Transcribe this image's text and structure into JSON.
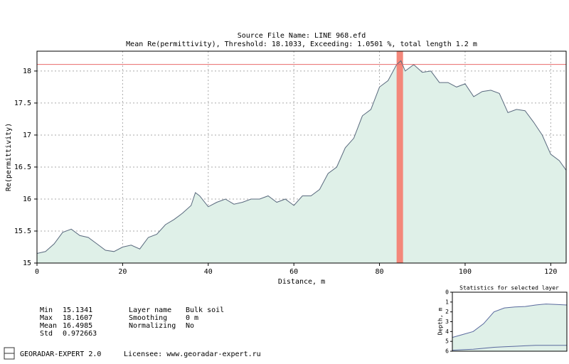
{
  "chart_data": [
    {
      "type": "area",
      "title": "Source File Name: LINE 968.efd",
      "subtitle": "Mean Re(permittivity), Threshold: 18.1033, Exceeding: 1.0501 %, total length 1.2 m",
      "x_label": "Distance, m",
      "y_label": "Re(permittivity)",
      "x": [
        0,
        2,
        4,
        6,
        8,
        10,
        12,
        14,
        16,
        18,
        20,
        22,
        24,
        26,
        28,
        30,
        32,
        34,
        36,
        37,
        38,
        40,
        42,
        44,
        46,
        48,
        50,
        52,
        54,
        56,
        58,
        60,
        62,
        64,
        66,
        68,
        70,
        72,
        74,
        76,
        78,
        80,
        82,
        84,
        85,
        86,
        88,
        90,
        92,
        94,
        96,
        98,
        100,
        102,
        104,
        106,
        108,
        110,
        112,
        114,
        116,
        118,
        120,
        122,
        123.6
      ],
      "values": [
        15.15,
        15.18,
        15.3,
        15.48,
        15.53,
        15.43,
        15.4,
        15.3,
        15.2,
        15.18,
        15.25,
        15.28,
        15.22,
        15.4,
        15.45,
        15.6,
        15.68,
        15.78,
        15.9,
        16.1,
        16.05,
        15.88,
        15.95,
        16.0,
        15.92,
        15.95,
        16.0,
        16.0,
        16.05,
        15.95,
        16.0,
        15.9,
        16.05,
        16.05,
        16.15,
        16.4,
        16.5,
        16.8,
        16.95,
        17.3,
        17.4,
        17.75,
        17.85,
        18.1,
        18.16,
        18.0,
        18.1,
        17.98,
        18.0,
        17.82,
        17.82,
        17.75,
        17.8,
        17.6,
        17.68,
        17.7,
        17.65,
        17.35,
        17.4,
        17.38,
        17.2,
        17.0,
        16.7,
        16.6,
        16.45
      ],
      "color": "#5a6a7e",
      "fill": "#dff0e8",
      "threshold": 18.1033,
      "threshold_color": "#e86a6a",
      "highlight_x": [
        84,
        85.5
      ],
      "highlight_color": "#f4877a",
      "xlim": [
        0,
        123.6
      ],
      "ylim": [
        15,
        18.31
      ],
      "xticks": [
        0,
        20,
        40,
        60,
        80,
        100,
        120
      ],
      "yticks": [
        15,
        15.5,
        16,
        16.5,
        17,
        17.5,
        18
      ],
      "grid": true
    },
    {
      "type": "line",
      "title": "Statistics for selected layer",
      "y_label": "Depth, m",
      "ylim": [
        0,
        6
      ],
      "yticks": [
        0,
        1,
        2,
        3,
        4,
        5,
        6
      ],
      "y_inverted": true,
      "fill": "#dff0e8",
      "series": [
        {
          "color": "#5a6a9e",
          "values": [
            4.6,
            4.3,
            4.0,
            3.2,
            2.0,
            1.6,
            1.5,
            1.45,
            1.3,
            1.2,
            1.25,
            1.3
          ]
        },
        {
          "color": "#5a6a9e",
          "values": [
            5.9,
            5.85,
            5.8,
            5.7,
            5.6,
            5.55,
            5.5,
            5.45,
            5.4,
            5.4,
            5.4,
            5.4
          ]
        }
      ]
    }
  ],
  "stats": [
    [
      "Min",
      "15.1341"
    ],
    [
      "Max",
      "18.1607"
    ],
    [
      "Mean",
      "16.4985"
    ],
    [
      "Std",
      "0.972663"
    ]
  ],
  "layer": [
    [
      "Layer name",
      "Bulk soil"
    ],
    [
      "Smoothing",
      "0 m"
    ],
    [
      "Normalizing",
      "No"
    ]
  ],
  "footer": {
    "app": "GEORADAR-EXPERT 2.0",
    "licensee": "Licensee: www.georadar-expert.ru"
  }
}
